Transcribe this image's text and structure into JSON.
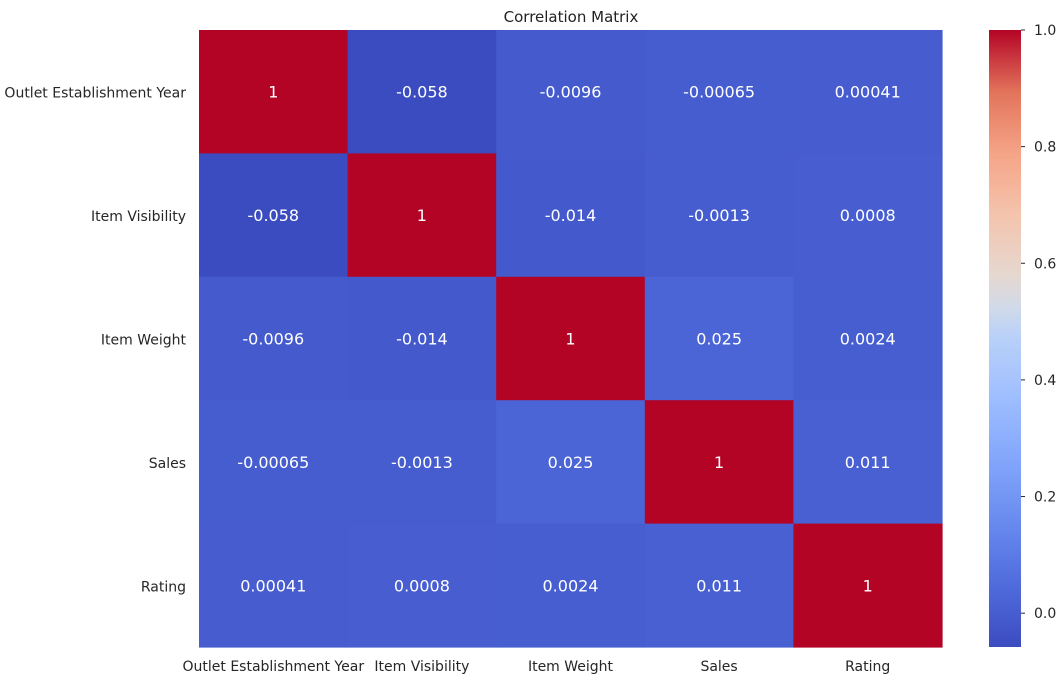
{
  "chart_data": {
    "type": "heatmap",
    "title": "Correlation Matrix",
    "x_labels": [
      "Outlet Establishment Year",
      "Item Visibility",
      "Item Weight",
      "Sales",
      "Rating"
    ],
    "y_labels": [
      "Outlet Establishment Year",
      "Item Visibility",
      "Item Weight",
      "Sales",
      "Rating"
    ],
    "values": [
      [
        1,
        -0.058,
        -0.0096,
        -0.00065,
        0.00041
      ],
      [
        -0.058,
        1,
        -0.014,
        -0.0013,
        0.0008
      ],
      [
        -0.0096,
        -0.014,
        1,
        0.025,
        0.0024
      ],
      [
        -0.00065,
        -0.0013,
        0.025,
        1,
        0.011
      ],
      [
        0.00041,
        0.0008,
        0.0024,
        0.011,
        1
      ]
    ],
    "annotations": [
      [
        "1",
        "-0.058",
        "-0.0096",
        "-0.00065",
        "0.00041"
      ],
      [
        "-0.058",
        "1",
        "-0.014",
        "-0.0013",
        "0.0008"
      ],
      [
        "-0.0096",
        "-0.014",
        "1",
        "0.025",
        "0.0024"
      ],
      [
        "-0.00065",
        "-0.0013",
        "0.025",
        "1",
        "0.011"
      ],
      [
        "0.00041",
        "0.0008",
        "0.0024",
        "0.011",
        "1"
      ]
    ],
    "colormap": "coolwarm",
    "vmin": -0.058,
    "vmax": 1,
    "colorbar_ticks": [
      0.0,
      0.2,
      0.4,
      0.6,
      0.8,
      1.0
    ],
    "colorbar_tick_labels": [
      "0.0",
      "0.2",
      "0.4",
      "0.6",
      "0.8",
      "1.0"
    ],
    "colorbar_position": "right",
    "grid": false
  }
}
